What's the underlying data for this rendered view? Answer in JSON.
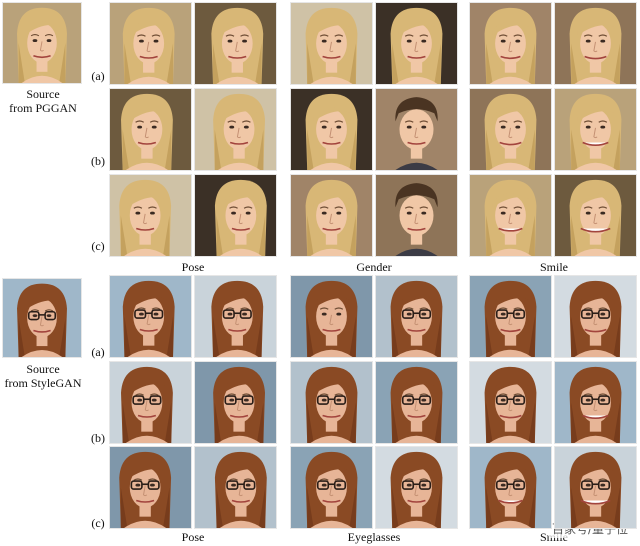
{
  "sections": [
    {
      "id": "pggan",
      "source_label_line1": "Source",
      "source_label_line2": "from PGGAN",
      "row_labels": [
        "(a)",
        "(b)",
        "(c)"
      ],
      "column_labels": [
        "Pose",
        "Gender",
        "Smile"
      ],
      "style": {
        "bg": [
          "#b9a27a",
          "#6d5a3e",
          "#cfc2a6",
          "#3b3026",
          "#a08468",
          "#8e7458"
        ],
        "hair": "#d8b776",
        "hair_dark": "#b8924f",
        "skin": "#f0c7a6",
        "male_hair": "#4a3422",
        "glasses": false
      }
    },
    {
      "id": "stylegan",
      "source_label_line1": "Source",
      "source_label_line2": "from StyleGAN",
      "row_labels": [
        "(a)",
        "(b)",
        "(c)"
      ],
      "column_labels": [
        "Pose",
        "Eyeglasses",
        "Smile"
      ],
      "style": {
        "bg": [
          "#9fb7c9",
          "#c9d3da",
          "#7f97aa",
          "#b2c1cc",
          "#8aa3b5",
          "#d3dbe1"
        ],
        "hair": "#8a4a24",
        "hair_dark": "#6b3417",
        "skin": "#e7b597",
        "male_hair": "#6b3417",
        "glasses": true
      }
    }
  ],
  "watermark": "百家号/量子位"
}
